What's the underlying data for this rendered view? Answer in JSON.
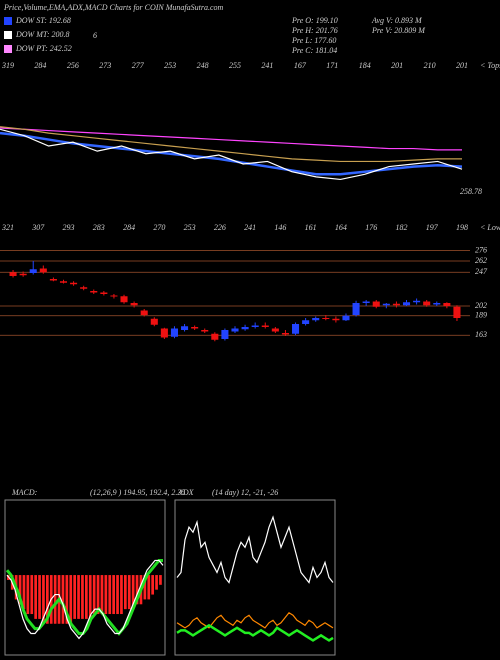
{
  "chart_data": [
    {
      "type": "candlestick",
      "title": "Price,Volume,EMA,ADX,MACD Charts for COIN  MunafaSutra.com",
      "legend": [
        {
          "name": "DOW ST: 192.68",
          "color": "#2244ff"
        },
        {
          "name": "DOW MT: 200.8",
          "color": "#ffffff"
        },
        {
          "name": "DOW PT: 242.52",
          "color": "#ff88ff"
        }
      ],
      "annotations": [
        "6",
        "258.78"
      ],
      "info": [
        "Pre  O: 199.10",
        "Pre  H: 201.76",
        "Pre  L: 177.60",
        "Pre  C: 181.04",
        "Avg V: 0.893 M",
        "Pre  V: 20.809 M"
      ],
      "tops": [
        "319",
        "284",
        "256",
        "273",
        "277",
        "253",
        "248",
        "255",
        "241",
        "167",
        "171",
        "184",
        "201",
        "210",
        "201"
      ],
      "tops_caption": "< Tops",
      "lows": [
        "321",
        "307",
        "293",
        "283",
        "284",
        "270",
        "253",
        "226",
        "241",
        "146",
        "161",
        "164",
        "176",
        "182",
        "197",
        "198"
      ],
      "lows_caption": "< Lows",
      "up_color": "#2244ff",
      "down_color": "#ee1111",
      "level_color": "#a0522d",
      "ylim": [
        150,
        290
      ],
      "yticks": [
        276,
        262,
        247,
        202,
        189,
        163
      ],
      "open": [
        247,
        245,
        246,
        252,
        238,
        235,
        233,
        227,
        222,
        220,
        216,
        215,
        206,
        196,
        185,
        172,
        161,
        170,
        174,
        170,
        165,
        158,
        168,
        171,
        174,
        176,
        172,
        166,
        165,
        178,
        183,
        186,
        185,
        183,
        190,
        206,
        208,
        203,
        205,
        203,
        207,
        208,
        204,
        206,
        201
      ],
      "high": [
        250,
        248,
        262,
        256,
        240,
        237,
        235,
        229,
        224,
        222,
        218,
        217,
        208,
        198,
        187,
        173,
        175,
        178,
        176,
        172,
        167,
        172,
        175,
        177,
        180,
        180,
        174,
        170,
        180,
        186,
        188,
        190,
        188,
        192,
        209,
        210,
        210,
        206,
        208,
        210,
        212,
        210,
        208,
        207,
        203
      ],
      "low": [
        240,
        241,
        244,
        245,
        235,
        232,
        229,
        223,
        218,
        216,
        212,
        205,
        200,
        188,
        175,
        158,
        159,
        168,
        170,
        166,
        155,
        156,
        166,
        169,
        172,
        172,
        166,
        162,
        163,
        176,
        181,
        183,
        180,
        182,
        188,
        202,
        199,
        199,
        200,
        202,
        204,
        201,
        202,
        199,
        182
      ],
      "close": [
        242,
        243,
        251,
        247,
        236,
        233,
        231,
        225,
        220,
        218,
        215,
        207,
        203,
        190,
        177,
        160,
        172,
        175,
        172,
        168,
        157,
        170,
        172,
        174,
        176,
        174,
        168,
        164,
        178,
        183,
        186,
        185,
        183,
        189,
        206,
        208,
        201,
        205,
        203,
        207,
        209,
        203,
        206,
        202,
        186
      ]
    },
    {
      "type": "line",
      "ylim": [
        220,
        290
      ],
      "series": [
        {
          "color": "#ff44ff",
          "values": [
            276,
            275,
            274,
            273,
            272,
            271,
            270,
            269,
            268,
            267,
            266,
            265,
            264,
            263,
            262,
            261,
            260,
            260,
            259,
            259
          ]
        },
        {
          "color": "#c8a050",
          "values": [
            277,
            275,
            272,
            270,
            268,
            266,
            264,
            262,
            260,
            258,
            256,
            254,
            252,
            251,
            250,
            250,
            250,
            251,
            252,
            252
          ]
        },
        {
          "color": "#3366ff",
          "values": [
            272,
            270,
            267,
            264,
            262,
            260,
            258,
            256,
            254,
            252,
            249,
            246,
            243,
            240,
            240,
            242,
            244,
            246,
            247,
            246
          ]
        },
        {
          "color": "#ffffff",
          "values": [
            275,
            270,
            262,
            265,
            258,
            262,
            256,
            258,
            252,
            255,
            248,
            250,
            242,
            238,
            236,
            240,
            246,
            248,
            250,
            244
          ]
        }
      ]
    },
    {
      "type": "macd",
      "title": "MACD:",
      "subtitle": "(12,26,9 ) 194.95, 192.4, 2.35",
      "ylim": [
        -16,
        15
      ],
      "bar_color": "#ff2222",
      "bars": [
        -1,
        -3,
        -5,
        -6,
        -7,
        -8,
        -8,
        -9,
        -9,
        -10,
        -10,
        -10,
        -10,
        -10,
        -10,
        -10,
        -10,
        -9,
        -9,
        -9,
        -9,
        -9,
        -8,
        -8,
        -8,
        -8,
        -8,
        -8,
        -8,
        -8,
        -7,
        -7,
        -7,
        -6,
        -6,
        -5,
        -5,
        -4,
        -3,
        -2
      ],
      "series": [
        {
          "color": "#22dd22",
          "values": [
            1,
            0,
            -2,
            -4,
            -7,
            -9,
            -10,
            -11,
            -11,
            -10,
            -9,
            -7,
            -6,
            -5,
            -6,
            -8,
            -10,
            -11,
            -12,
            -12,
            -11,
            -9,
            -8,
            -7,
            -8,
            -9,
            -10,
            -11,
            -12,
            -11,
            -10,
            -8,
            -6,
            -4,
            -2,
            0,
            1,
            2,
            3,
            3
          ]
        },
        {
          "color": "#ffffff",
          "values": [
            0,
            -1,
            -3,
            -6,
            -9,
            -11,
            -12,
            -12,
            -11,
            -9,
            -7,
            -5,
            -4,
            -4,
            -6,
            -9,
            -11,
            -12,
            -13,
            -12,
            -10,
            -8,
            -7,
            -7,
            -8,
            -10,
            -11,
            -12,
            -12,
            -11,
            -9,
            -7,
            -5,
            -3,
            -1,
            1,
            2,
            3,
            3,
            2
          ]
        }
      ]
    },
    {
      "type": "adx",
      "title": "ADX",
      "subtitle": "(14 day) 12, -21, -26",
      "ylim": [
        0,
        60
      ],
      "series": [
        {
          "color": "#ffffff",
          "values": [
            30,
            32,
            45,
            50,
            48,
            52,
            42,
            44,
            38,
            35,
            32,
            36,
            30,
            28,
            34,
            40,
            44,
            42,
            46,
            38,
            36,
            40,
            44,
            50,
            54,
            48,
            42,
            46,
            50,
            44,
            38,
            32,
            30,
            28,
            34,
            30,
            32,
            36,
            30,
            28
          ]
        },
        {
          "color": "#ff8800",
          "values": [
            12,
            11,
            10,
            11,
            13,
            14,
            12,
            11,
            10,
            12,
            14,
            15,
            13,
            12,
            11,
            13,
            12,
            14,
            15,
            13,
            12,
            11,
            10,
            12,
            13,
            11,
            12,
            14,
            16,
            15,
            13,
            12,
            11,
            13,
            12,
            10,
            11,
            12,
            11,
            10
          ]
        },
        {
          "color": "#22ee22",
          "values": [
            8,
            9,
            9,
            8,
            7,
            8,
            9,
            10,
            11,
            10,
            9,
            8,
            7,
            8,
            9,
            10,
            9,
            8,
            8,
            7,
            8,
            9,
            8,
            7,
            8,
            10,
            9,
            8,
            7,
            8,
            9,
            8,
            7,
            6,
            5,
            6,
            7,
            6,
            5,
            6
          ]
        }
      ]
    }
  ]
}
